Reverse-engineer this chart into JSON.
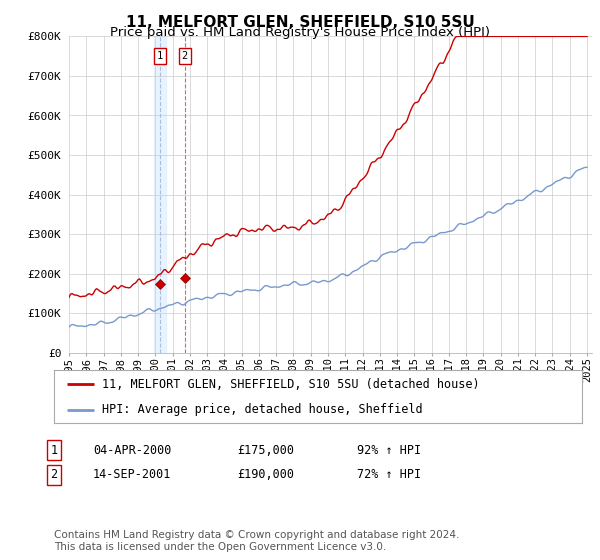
{
  "title": "11, MELFORT GLEN, SHEFFIELD, S10 5SU",
  "subtitle": "Price paid vs. HM Land Registry's House Price Index (HPI)",
  "ylim": [
    0,
    800000
  ],
  "yticks": [
    0,
    100000,
    200000,
    300000,
    400000,
    500000,
    600000,
    700000,
    800000
  ],
  "ytick_labels": [
    "£0",
    "£100K",
    "£200K",
    "£300K",
    "£400K",
    "£500K",
    "£600K",
    "£700K",
    "£800K"
  ],
  "red_line_color": "#cc0000",
  "blue_line_color": "#7799cc",
  "vline1_color": "#aabbdd",
  "vline2_color": "#cc4444",
  "purchase1_date": 2000.27,
  "purchase1_price": 175000,
  "purchase2_date": 2001.71,
  "purchase2_price": 190000,
  "legend_label_red": "11, MELFORT GLEN, SHEFFIELD, S10 5SU (detached house)",
  "legend_label_blue": "HPI: Average price, detached house, Sheffield",
  "table_row1_num": "1",
  "table_row1_date": "04-APR-2000",
  "table_row1_price": "£175,000",
  "table_row1_hpi": "92% ↑ HPI",
  "table_row2_num": "2",
  "table_row2_date": "14-SEP-2001",
  "table_row2_price": "£190,000",
  "table_row2_hpi": "72% ↑ HPI",
  "footer_text": "Contains HM Land Registry data © Crown copyright and database right 2024.\nThis data is licensed under the Open Government Licence v3.0.",
  "bg_color": "#ffffff",
  "grid_color": "#cccccc"
}
